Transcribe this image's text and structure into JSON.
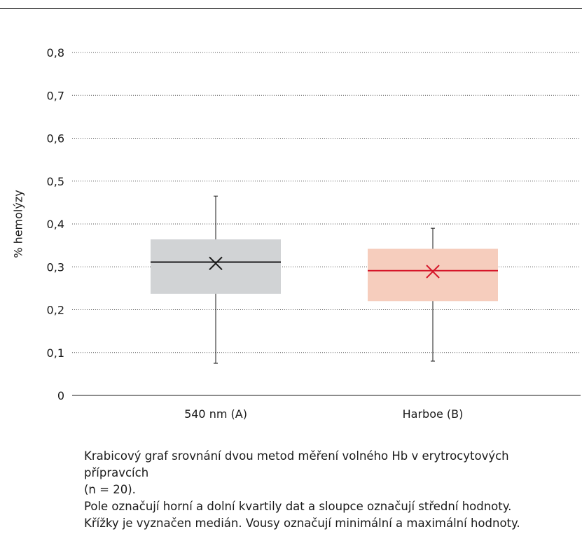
{
  "chart_data": {
    "type": "box",
    "ylabel": "% hemolýzy",
    "ylim": [
      0,
      0.8
    ],
    "yticks": [
      "0",
      "0,1",
      "0,2",
      "0,3",
      "0,4",
      "0,5",
      "0,6",
      "0,7",
      "0,8"
    ],
    "ytick_values": [
      0,
      0.1,
      0.2,
      0.3,
      0.4,
      0.5,
      0.6,
      0.7,
      0.8
    ],
    "grid": true,
    "categories": [
      "540 nm (A)",
      "Harboe (B)"
    ],
    "boxes": [
      {
        "category": "540 nm (A)",
        "min": 0.075,
        "q1": 0.237,
        "mean": 0.311,
        "median": 0.308,
        "q3": 0.364,
        "max": 0.465,
        "box_color": "#d1d3d5",
        "line_color": "#1a1a1a"
      },
      {
        "category": "Harboe (B)",
        "min": 0.08,
        "q1": 0.22,
        "mean": 0.291,
        "median": 0.289,
        "q3": 0.342,
        "max": 0.39,
        "box_color": "#f6cdbd",
        "line_color": "#d6172a"
      }
    ]
  },
  "caption": {
    "line1": "Krabicový graf srovnání dvou metod měření volného Hb v erytrocytových přípravcích",
    "line2": "(n = 20).",
    "line3": "Pole označují horní a dolní kvartily dat a sloupce označují střední hodnoty.",
    "line4": "Křížky je vyznačen medián. Vousy označují minimální a maximální hodnoty."
  }
}
